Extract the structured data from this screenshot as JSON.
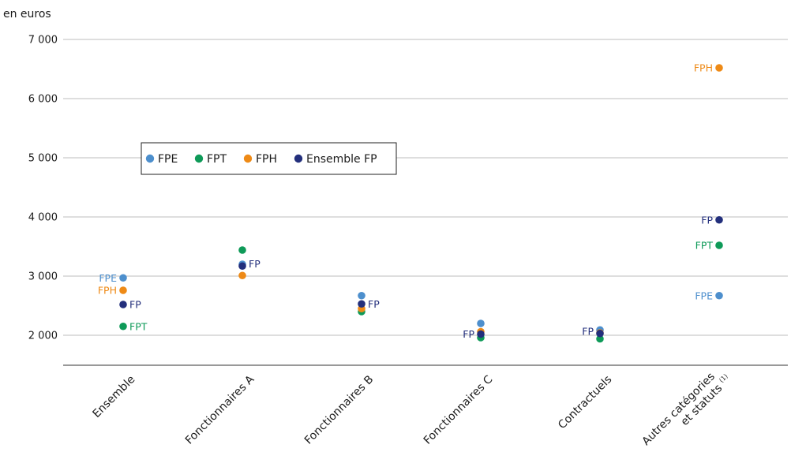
{
  "chart_data": {
    "type": "scatter",
    "unit_label": "en euros",
    "y_ticks": [
      {
        "v": 2000,
        "t": "2 000"
      },
      {
        "v": 3000,
        "t": "3 000"
      },
      {
        "v": 4000,
        "t": "4 000"
      },
      {
        "v": 5000,
        "t": "5 000"
      },
      {
        "v": 6000,
        "t": "6 000"
      },
      {
        "v": 7000,
        "t": "7 000"
      }
    ],
    "ylim": [
      1500,
      7000
    ],
    "categories": [
      {
        "lines": [
          "Ensemble"
        ],
        "sup": ""
      },
      {
        "lines": [
          "Fonctionnaires A"
        ],
        "sup": ""
      },
      {
        "lines": [
          "Fonctionnaires B"
        ],
        "sup": ""
      },
      {
        "lines": [
          "Fonctionnaires C"
        ],
        "sup": ""
      },
      {
        "lines": [
          "Contractuels"
        ],
        "sup": ""
      },
      {
        "lines": [
          "Autres catégories",
          "et statuts"
        ],
        "sup": "(1)"
      }
    ],
    "series": [
      {
        "name": "FPE",
        "color": "#4d8fcd",
        "values": [
          2970,
          3200,
          2670,
          2200,
          2090,
          2670
        ]
      },
      {
        "name": "FPT",
        "color": "#0e9a58",
        "values": [
          2150,
          3440,
          2400,
          1960,
          1940,
          3520
        ]
      },
      {
        "name": "FPH",
        "color": "#ee8a16",
        "values": [
          2760,
          3010,
          2450,
          2060,
          2040,
          6520
        ]
      },
      {
        "name": "Ensemble FP",
        "color": "#232f7c",
        "values": [
          2520,
          3170,
          2530,
          2020,
          2030,
          3950
        ]
      }
    ],
    "point_labels": [
      {
        "cat": 0,
        "series": 0,
        "text": "FPE",
        "side": "left",
        "dy": 0
      },
      {
        "cat": 0,
        "series": 2,
        "text": "FPH",
        "side": "left",
        "dy": 0
      },
      {
        "cat": 0,
        "series": 3,
        "text": "FP",
        "side": "right",
        "dy": 0
      },
      {
        "cat": 0,
        "series": 1,
        "text": "FPT",
        "side": "right",
        "dy": 0
      },
      {
        "cat": 1,
        "series": 3,
        "text": "FP",
        "side": "right",
        "dy": -3
      },
      {
        "cat": 2,
        "series": 3,
        "text": "FP",
        "side": "right",
        "dy": 0
      },
      {
        "cat": 3,
        "series": 3,
        "text": "FP",
        "side": "left",
        "dy": 0
      },
      {
        "cat": 4,
        "series": 3,
        "text": "FP",
        "side": "left",
        "dy": -3
      },
      {
        "cat": 5,
        "series": 2,
        "text": "FPH",
        "side": "left",
        "dy": 0
      },
      {
        "cat": 5,
        "series": 3,
        "text": "FP",
        "side": "left",
        "dy": 0
      },
      {
        "cat": 5,
        "series": 1,
        "text": "FPT",
        "side": "left",
        "dy": 0
      },
      {
        "cat": 5,
        "series": 0,
        "text": "FPE",
        "side": "left",
        "dy": 0
      }
    ],
    "legend": {
      "position": "upper-left"
    },
    "grid": true
  }
}
